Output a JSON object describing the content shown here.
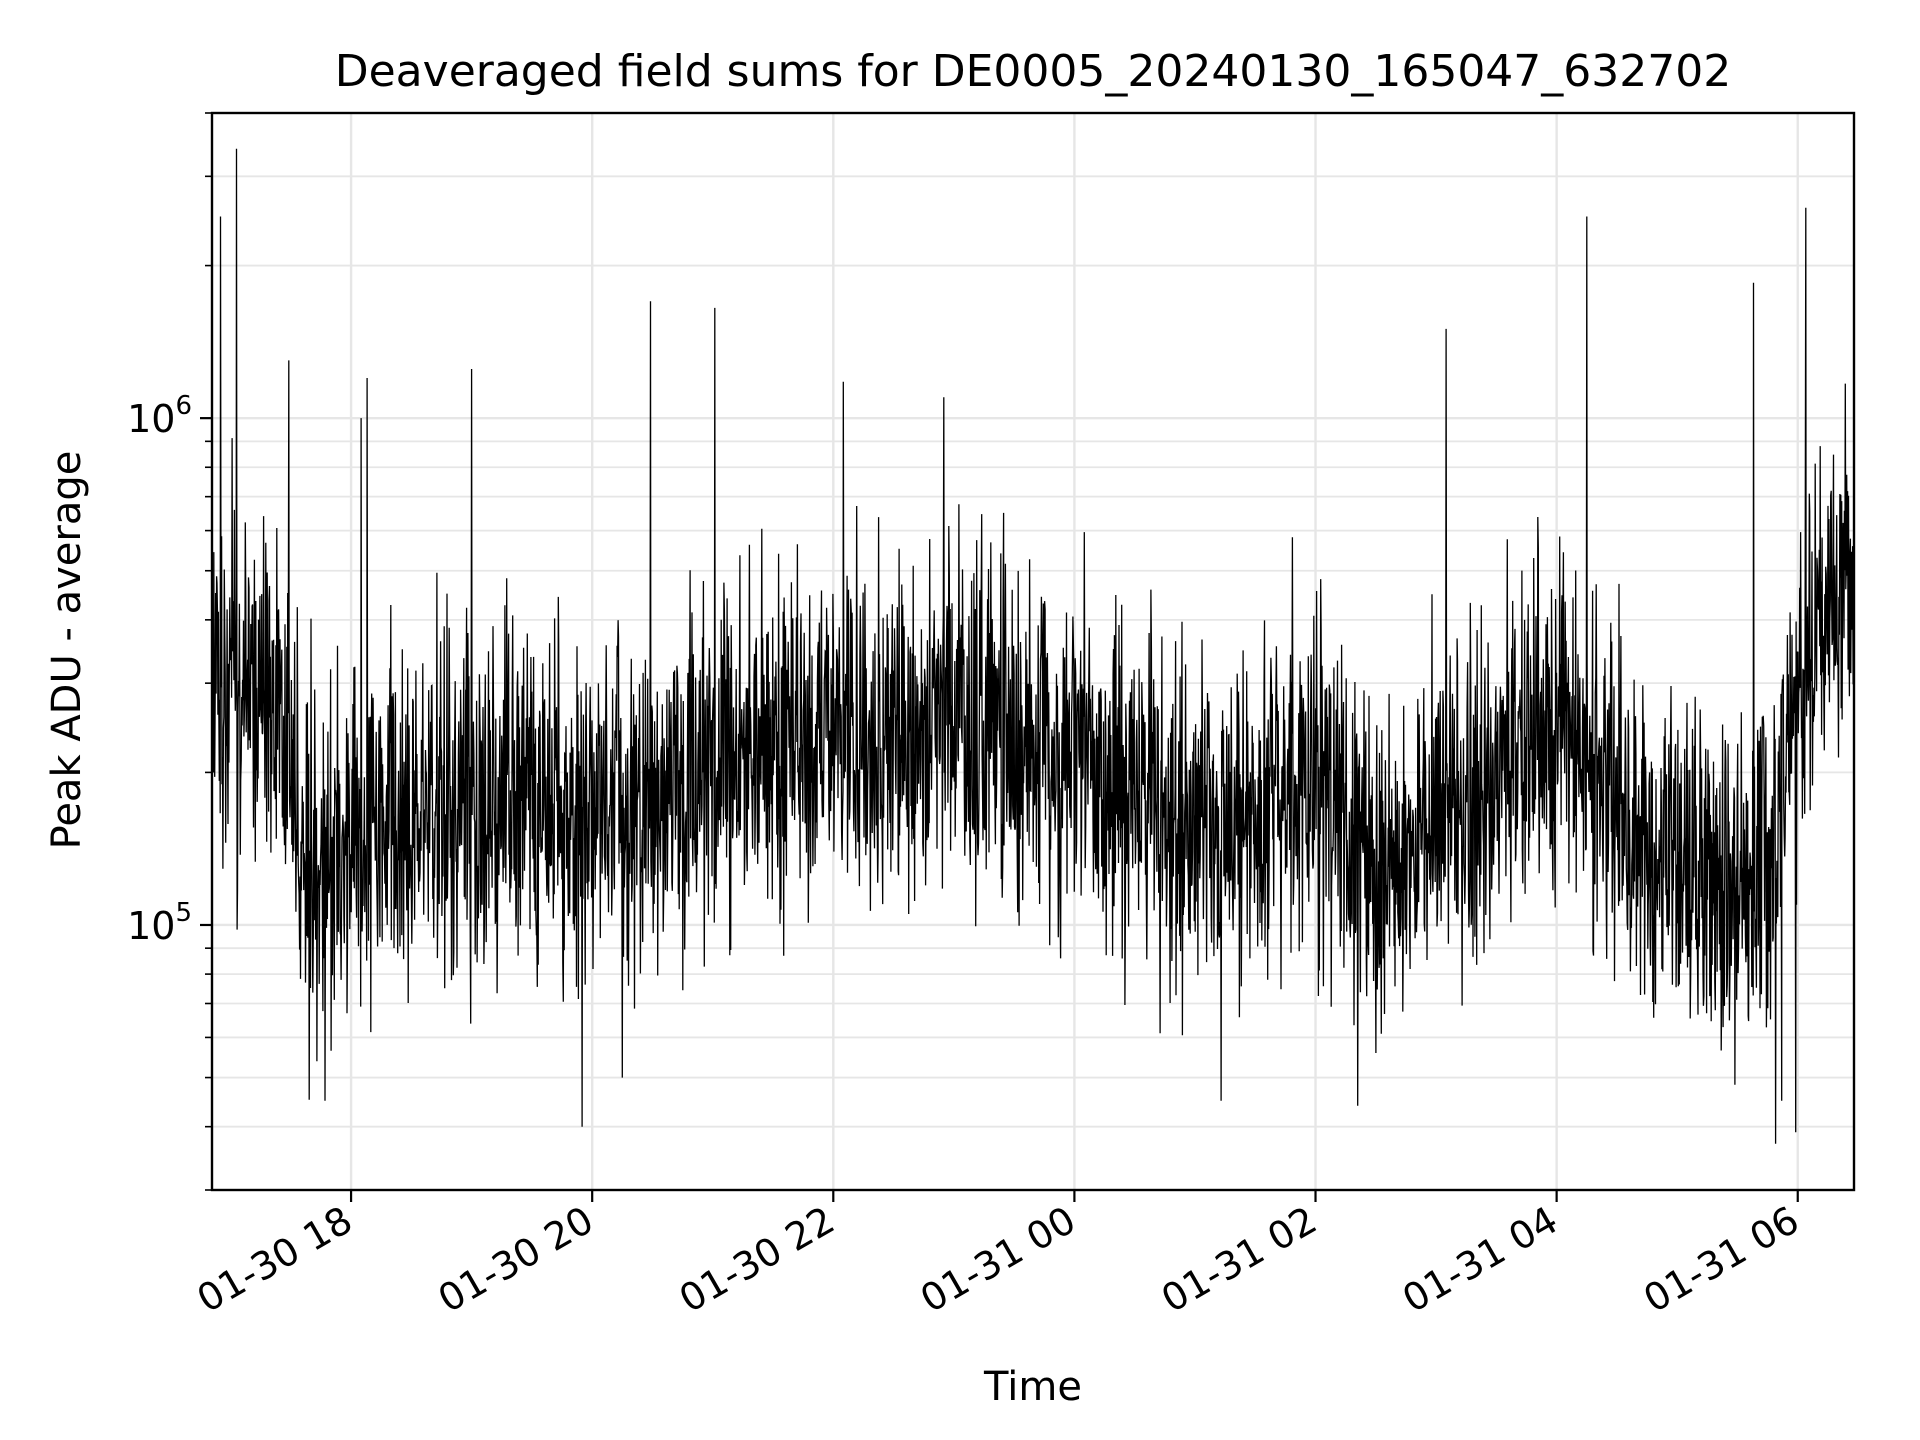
{
  "chart_data": {
    "type": "line",
    "title": "Deaveraged field sums for DE0005_20240130_165047_632702",
    "xlabel": "Time",
    "ylabel": "Peak ADU - average",
    "yscale": "log",
    "x_start": "2024-01-30 16:50:47",
    "x_end": "2024-01-31 06:28:00",
    "xlim": [
      "2024-01-30 16:50:47",
      "2024-01-31 06:28:00"
    ],
    "ylim": [
      30000,
      4000000
    ],
    "x_ticks": [
      {
        "label": "01-30 18",
        "time": "2024-01-30 18:00"
      },
      {
        "label": "01-30 20",
        "time": "2024-01-30 20:00"
      },
      {
        "label": "01-30 22",
        "time": "2024-01-30 22:00"
      },
      {
        "label": "01-31 00",
        "time": "2024-01-31 00:00"
      },
      {
        "label": "01-31 02",
        "time": "2024-01-31 02:00"
      },
      {
        "label": "01-31 04",
        "time": "2024-01-31 04:00"
      },
      {
        "label": "01-31 06",
        "time": "2024-01-31 06:00"
      }
    ],
    "y_ticks": [
      {
        "base": "10",
        "exp": "5",
        "value": 100000
      },
      {
        "base": "10",
        "exp": "6",
        "value": 1000000
      }
    ],
    "grid": true,
    "series": [
      {
        "color": "#000000",
        "trend": [
          {
            "time": "2024-01-30 16:50",
            "value": 280000
          },
          {
            "time": "2024-01-30 17:25",
            "value": 300000
          },
          {
            "time": "2024-01-30 17:35",
            "value": 130000
          },
          {
            "time": "2024-01-30 18:05",
            "value": 140000
          },
          {
            "time": "2024-01-30 18:30",
            "value": 170000
          },
          {
            "time": "2024-01-30 19:15",
            "value": 185000
          },
          {
            "time": "2024-01-30 19:50",
            "value": 160000
          },
          {
            "time": "2024-01-30 20:40",
            "value": 190000
          },
          {
            "time": "2024-01-30 21:30",
            "value": 220000
          },
          {
            "time": "2024-01-30 22:10",
            "value": 240000
          },
          {
            "time": "2024-01-30 23:00",
            "value": 260000
          },
          {
            "time": "2024-01-31 00:00",
            "value": 200000
          },
          {
            "time": "2024-01-31 01:10",
            "value": 150000
          },
          {
            "time": "2024-01-31 02:00",
            "value": 200000
          },
          {
            "time": "2024-01-31 02:30",
            "value": 130000
          },
          {
            "time": "2024-01-31 03:00",
            "value": 160000
          },
          {
            "time": "2024-01-31 04:00",
            "value": 250000
          },
          {
            "time": "2024-01-31 04:30",
            "value": 180000
          },
          {
            "time": "2024-01-31 04:45",
            "value": 140000
          },
          {
            "time": "2024-01-31 05:45",
            "value": 120000
          },
          {
            "time": "2024-01-31 06:00",
            "value": 320000
          },
          {
            "time": "2024-01-31 06:28",
            "value": 500000
          }
        ],
        "spikes": [
          {
            "time": "2024-01-30 16:55",
            "value": 2500000
          },
          {
            "time": "2024-01-30 17:03",
            "value": 3400000
          },
          {
            "time": "2024-01-30 17:29",
            "value": 1300000
          },
          {
            "time": "2024-01-30 18:05",
            "value": 1000000
          },
          {
            "time": "2024-01-30 18:08",
            "value": 1200000
          },
          {
            "time": "2024-01-30 19:00",
            "value": 1250000
          },
          {
            "time": "2024-01-30 20:29",
            "value": 1700000
          },
          {
            "time": "2024-01-30 21:01",
            "value": 1650000
          },
          {
            "time": "2024-01-30 22:05",
            "value": 1180000
          },
          {
            "time": "2024-01-30 22:55",
            "value": 1100000
          },
          {
            "time": "2024-01-31 03:05",
            "value": 1500000
          },
          {
            "time": "2024-01-31 04:15",
            "value": 2500000
          },
          {
            "time": "2024-01-31 05:38",
            "value": 1850000
          },
          {
            "time": "2024-01-31 06:04",
            "value": 2600000
          }
        ],
        "dips": [
          {
            "time": "2024-01-30 17:47",
            "value": 45000
          },
          {
            "time": "2024-01-30 19:55",
            "value": 40000
          },
          {
            "time": "2024-01-30 20:15",
            "value": 50000
          },
          {
            "time": "2024-01-31 01:13",
            "value": 45000
          },
          {
            "time": "2024-01-31 02:21",
            "value": 44000
          },
          {
            "time": "2024-01-31 05:49",
            "value": 37000
          },
          {
            "time": "2024-01-31 05:52",
            "value": 45000
          },
          {
            "time": "2024-01-31 05:59",
            "value": 39000
          }
        ]
      }
    ]
  }
}
